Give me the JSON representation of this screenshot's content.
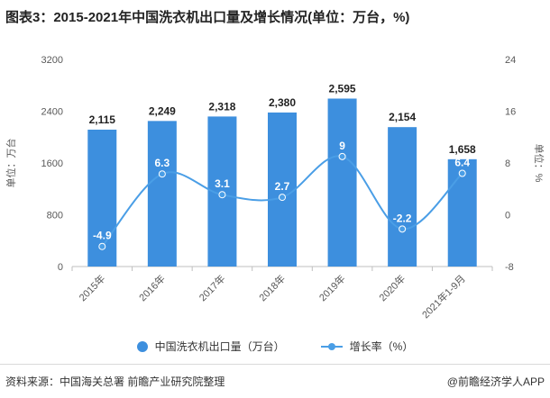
{
  "title": "图表3：2015-2021年中国洗衣机出口量及增长情况(单位：万台，%)",
  "footer": {
    "source": "资料来源：中国海关总署 前瞻产业研究院整理",
    "brand": "@前瞻经济学人APP"
  },
  "colors": {
    "bar": "#3d8fde",
    "line": "#4a9ee6",
    "axis": "#bfbfbf",
    "text": "#595959"
  },
  "chart_data": {
    "type": "bar+line",
    "categories": [
      "2015年",
      "2016年",
      "2017年",
      "2018年",
      "2019年",
      "2020年",
      "2021年1-9月"
    ],
    "series": [
      {
        "name": "中国洗衣机出口量（万台）",
        "type": "bar",
        "axis": "left",
        "values": [
          2115,
          2249,
          2318,
          2380,
          2595,
          2154,
          1658
        ],
        "labels": [
          "2,115",
          "2,249",
          "2,318",
          "2,380",
          "2,595",
          "2,154",
          "1,658"
        ]
      },
      {
        "name": "增长率（%）",
        "type": "line",
        "axis": "right",
        "values": [
          -4.9,
          6.3,
          3.1,
          2.7,
          9,
          -2.2,
          6.4
        ],
        "labels": [
          "-4.9",
          "6.3",
          "3.1",
          "2.7",
          "9",
          "-2.2",
          "6.4"
        ]
      }
    ],
    "y_left": {
      "label": "单位：万台",
      "min": 0,
      "max": 3200,
      "ticks": [
        0,
        800,
        1600,
        2400,
        3200
      ]
    },
    "y_right": {
      "label": "单位：%",
      "min": -8,
      "max": 24,
      "ticks": [
        -8,
        0,
        8,
        16,
        24
      ]
    },
    "grid": false,
    "legend": "bottom"
  }
}
